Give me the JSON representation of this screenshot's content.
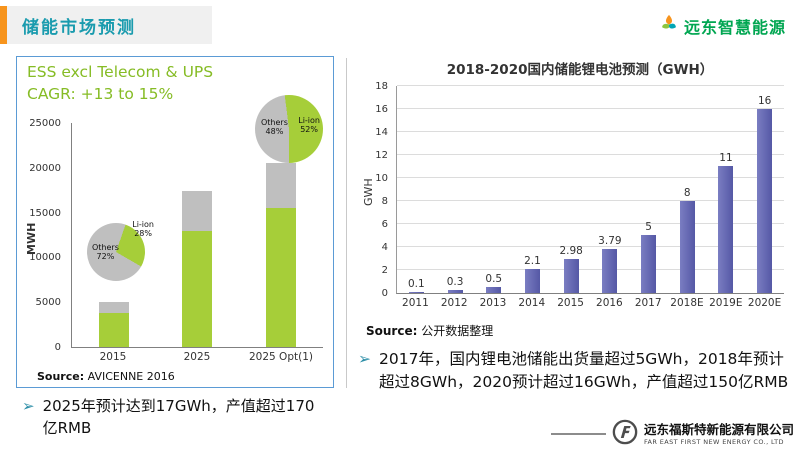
{
  "slide": {
    "title": "储能市场预测",
    "brand": "远东智慧能源"
  },
  "left_panel": {
    "heading_line1": "ESS excl Telecom & UPS",
    "heading_line2": "CAGR: +13 to 15%",
    "source_label": "Source:",
    "source_text": " AVICENNE  2016",
    "bullet_icon": "➢",
    "bullet_text": "2025年预计达到17GWh，产值超过170亿RMB"
  },
  "right_panel": {
    "source_label": "Source:",
    "source_text": " 公开数据整理",
    "bullet_icon": "➢",
    "bullet_text": "2017年，国内锂电池储能出货量超过5GWh，2018年预计超过8GWh，2020预计超过16GWh，产值超过150亿RMB"
  },
  "footer": {
    "company_cn": "远东福斯特新能源有限公司",
    "company_en": "FAR EAST FIRST NEW ENERGY CO., LTD"
  },
  "chart_data": [
    {
      "type": "bar",
      "categories": [
        "2015",
        "2025",
        "2025 Opt(1)"
      ],
      "series": [
        {
          "name": "Li-ion",
          "color": "#A6CE39",
          "values": [
            3800,
            13000,
            15500
          ]
        },
        {
          "name": "Others",
          "color": "#BFBFBF",
          "values": [
            1200,
            4500,
            5000
          ]
        }
      ],
      "ylabel": "MWH",
      "ylim": [
        0,
        25000
      ],
      "ystep": 5000,
      "grid": false,
      "legend": "none"
    },
    {
      "type": "pie",
      "labels": [
        "Others",
        "Li-ion"
      ],
      "values": [
        72,
        28
      ],
      "colors": [
        "#BFBFBF",
        "#A6CE39"
      ],
      "rotation": 120
    },
    {
      "type": "pie",
      "labels": [
        "Others",
        "Li-ion"
      ],
      "values": [
        48,
        52
      ],
      "colors": [
        "#BFBFBF",
        "#A6CE39"
      ],
      "rotation": 180
    },
    {
      "type": "bar",
      "title": "2018-2020国内储能锂电池预测（GWH）",
      "categories": [
        "2011",
        "2012",
        "2013",
        "2014",
        "2015",
        "2016",
        "2017",
        "2018E",
        "2019E",
        "2020E"
      ],
      "values": [
        0.1,
        0.3,
        0.5,
        2.1,
        2.98,
        3.79,
        5,
        8,
        11,
        16
      ],
      "labels": [
        "0.1",
        "0.3",
        "0.5",
        "2.1",
        "2.98",
        "3.79",
        "5",
        "8",
        "11",
        "16"
      ],
      "ylabel": "GWH",
      "ylim": [
        0,
        18
      ],
      "ystep": 2,
      "grid": true,
      "legend": "none",
      "bar_color": "#5558A5",
      "bar_color_light": "#7A7DC2"
    }
  ],
  "colors": {
    "title_teal": "#1A9BAE",
    "accent_orange": "#F7941D",
    "brand_green": "#00A651",
    "heading_green": "#86BC25",
    "bullet_arrow": "#2E8FA8",
    "panel_border": "#5B9BD5"
  }
}
